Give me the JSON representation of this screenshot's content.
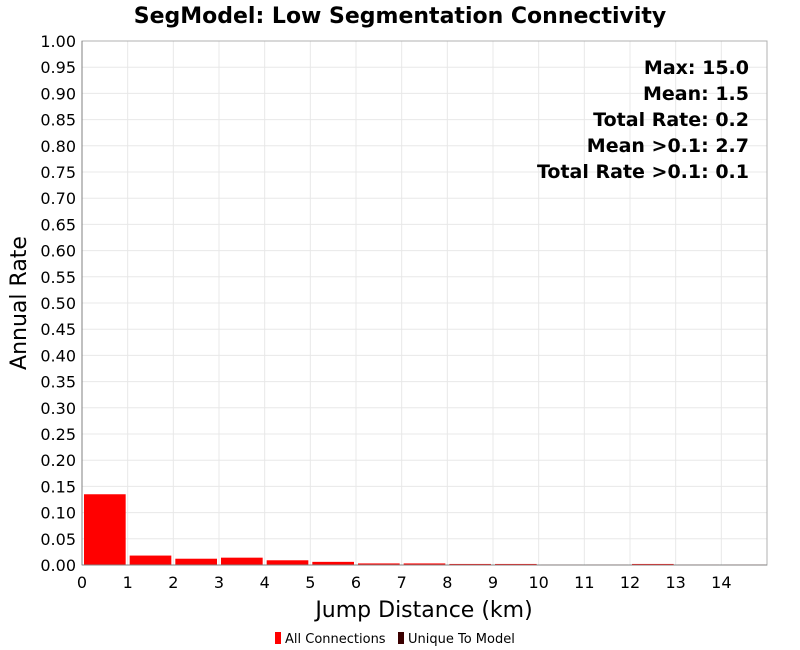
{
  "chart_data": {
    "type": "bar",
    "title": "SegModel: Low Segmentation Connectivity",
    "xlabel": "Jump Distance (km)",
    "ylabel": "Annual Rate",
    "xlim": [
      0,
      15
    ],
    "ylim": [
      0,
      1.0
    ],
    "x_ticks": [
      "0",
      "1",
      "2",
      "3",
      "4",
      "5",
      "6",
      "7",
      "8",
      "9",
      "10",
      "11",
      "12",
      "13",
      "14"
    ],
    "y_ticks": [
      "0.00",
      "0.05",
      "0.10",
      "0.15",
      "0.20",
      "0.25",
      "0.30",
      "0.35",
      "0.40",
      "0.45",
      "0.50",
      "0.55",
      "0.60",
      "0.65",
      "0.70",
      "0.75",
      "0.80",
      "0.85",
      "0.90",
      "0.95",
      "1.00"
    ],
    "bin_width": 1,
    "series": [
      {
        "name": "All Connections",
        "color": "#ff0000",
        "x": [
          0,
          1,
          2,
          3,
          4,
          5,
          6,
          7,
          8,
          9,
          10,
          11,
          12,
          13,
          14
        ],
        "values": [
          0.135,
          0.018,
          0.012,
          0.014,
          0.009,
          0.006,
          0.003,
          0.003,
          0.002,
          0.002,
          0.001,
          0.001,
          0.002,
          0.001,
          0.001
        ]
      },
      {
        "name": "Unique To Model",
        "color": "#3a0000",
        "x": [],
        "values": []
      }
    ],
    "annotations": [
      "Max: 15.0",
      "Mean: 1.5",
      "Total Rate: 0.2",
      "Mean >0.1: 2.7",
      "Total Rate >0.1: 0.1"
    ],
    "legend": [
      {
        "label": "All Connections",
        "color": "#ff0000"
      },
      {
        "label": "Unique To Model",
        "color": "#3a0000"
      }
    ],
    "legend_position": "bottom",
    "grid": true
  }
}
